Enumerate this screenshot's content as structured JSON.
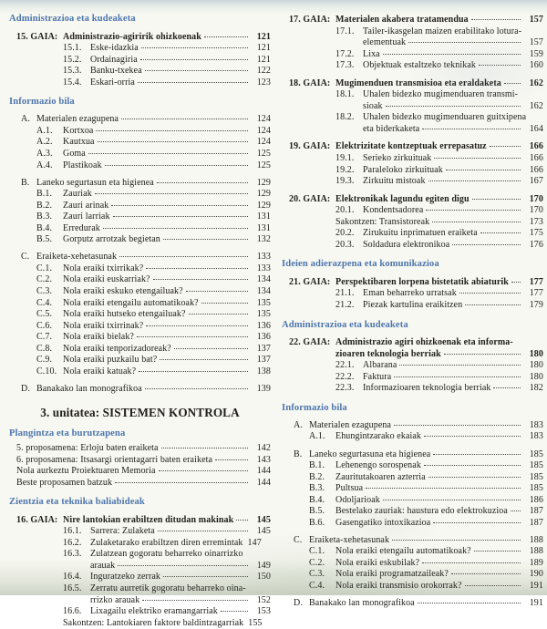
{
  "colors": {
    "heading_blue": "#4d76ad",
    "body_text": "#21201c",
    "paper": "#f8f8f2"
  },
  "columns": {
    "left": [
      {
        "type": "heading",
        "text": "Administrazioa eta kudeaketa"
      },
      {
        "type": "gaia",
        "pre": "15. GAIA:",
        "text": "Administrazio-agiririk ohizkoenak",
        "page": "121"
      },
      {
        "type": "gsub",
        "pre": "15.1.",
        "text": "Eske-idazkia",
        "page": "121"
      },
      {
        "type": "gsub",
        "pre": "15.2.",
        "text": "Ordainagiria",
        "page": "121"
      },
      {
        "type": "gsub",
        "pre": "15.3.",
        "text": "Banku-txekea",
        "page": "122"
      },
      {
        "type": "gsub",
        "pre": "15.4.",
        "text": "Eskari-orria",
        "page": "123"
      },
      {
        "type": "heading",
        "text": "Informazio bila"
      },
      {
        "type": "letter",
        "pre": "A.",
        "text": "Materialen ezagupena",
        "page": "124"
      },
      {
        "type": "lsub",
        "pre": "A.1.",
        "text": "Kortxoa",
        "page": "124"
      },
      {
        "type": "lsub",
        "pre": "A.2.",
        "text": "Kautxua",
        "page": "124"
      },
      {
        "type": "lsub",
        "pre": "A.3.",
        "text": "Goma",
        "page": "125"
      },
      {
        "type": "lsub",
        "pre": "A.4.",
        "text": "Plastikoak",
        "page": "125"
      },
      {
        "type": "letter",
        "pre": "B.",
        "text": "Laneko segurtasun eta higienea",
        "page": "129"
      },
      {
        "type": "lsub",
        "pre": "B.1.",
        "text": "Zauriak",
        "page": "129"
      },
      {
        "type": "lsub",
        "pre": "B.2.",
        "text": "Zauri arinak",
        "page": "129"
      },
      {
        "type": "lsub",
        "pre": "B.3.",
        "text": "Zauri larriak",
        "page": "131"
      },
      {
        "type": "lsub",
        "pre": "B.4.",
        "text": "Erredurak",
        "page": "131"
      },
      {
        "type": "lsub",
        "pre": "B.5.",
        "text": "Gorputz arrotzak begietan",
        "page": "132"
      },
      {
        "type": "letter",
        "pre": "C.",
        "text": "Eraiketa-xehetasunak",
        "page": "133"
      },
      {
        "type": "lsub",
        "pre": "C.1.",
        "text": "Nola eraiki txirrikak?",
        "page": "133"
      },
      {
        "type": "lsub",
        "pre": "C.2.",
        "text": "Nola eraiki euskarriak?",
        "page": "134"
      },
      {
        "type": "lsub",
        "pre": "C.3.",
        "text": "Nola eraiki eskuko etengailuak?",
        "page": "134"
      },
      {
        "type": "lsub",
        "pre": "C.4.",
        "text": "Nola eraiki etengailu automatikoak?",
        "page": "135"
      },
      {
        "type": "lsub",
        "pre": "C.5.",
        "text": "Nola eraiki hutseko etengailuak?",
        "page": "135"
      },
      {
        "type": "lsub",
        "pre": "C.6.",
        "text": "Nola eraiki txirrinak?",
        "page": "136"
      },
      {
        "type": "lsub",
        "pre": "C.7.",
        "text": "Nola eraiki bielak?",
        "page": "136"
      },
      {
        "type": "lsub",
        "pre": "C.8.",
        "text": "Nola eraiki tenporizadoreak?",
        "page": "137"
      },
      {
        "type": "lsub",
        "pre": "C.9.",
        "text": "Nola eraiki puzkailu bat?",
        "page": "137"
      },
      {
        "type": "lsub",
        "pre": "C.10.",
        "text": "Nola eraiki katuak?",
        "page": "138"
      },
      {
        "type": "letter",
        "pre": "D.",
        "text": "Banakako lan monografikoa",
        "page": "139"
      },
      {
        "type": "unit",
        "text": "3. unitatea: SISTEMEN KONTROLA"
      },
      {
        "type": "heading",
        "text": "Plangintza eta burutzapena"
      },
      {
        "type": "plain",
        "text": "5. proposamena: Erloju baten eraiketa",
        "page": "142"
      },
      {
        "type": "plain",
        "text": "6. proposamena: Itsasargi orientagarri baten eraiketa",
        "page": "143"
      },
      {
        "type": "plain",
        "text": "Nola aurkeztu Proiektuaren Memoria",
        "page": "144"
      },
      {
        "type": "plain",
        "text": "Beste proposamen batzuk",
        "page": "144"
      },
      {
        "type": "heading",
        "text": "Zientzia eta teknika baliabideak"
      },
      {
        "type": "gaia",
        "pre": "16. GAIA:",
        "text": "Nire lantokian erabiltzen ditudan makinak",
        "page": "145"
      },
      {
        "type": "gsub",
        "pre": "16.1.",
        "text": "Sarrera: Zulaketa",
        "page": "145"
      },
      {
        "type": "gsub",
        "pre": "16.2.",
        "text": "Zulaketarako erabiltzen diren erremintak",
        "page": "147",
        "nodots": true
      },
      {
        "type": "gsub",
        "pre": "16.3.",
        "text": "Zulatzean gogoratu beharreko oinarrizko"
      },
      {
        "type": "gsubcont",
        "text": "arauak",
        "page": "149"
      },
      {
        "type": "gsub",
        "pre": "16.4.",
        "text": "Inguratzeko zerrak",
        "page": "150"
      },
      {
        "type": "gsub",
        "pre": "16.5.",
        "text": "Zerratu aurretik gogoratu beharreko oina-"
      },
      {
        "type": "gsubcont",
        "text": "rrizko arauak",
        "page": "152"
      },
      {
        "type": "gsub",
        "pre": "16.6.",
        "text": "Lixagailu elektriko eramangarriak",
        "page": "153"
      },
      {
        "type": "sak",
        "text": "Sakontzen: Lantokiaren faktore baldintzagarriak",
        "page": "155",
        "nodots": true
      }
    ],
    "right": [
      {
        "type": "gaia",
        "pre": "17. GAIA:",
        "text": "Materialen akabera tratamendua",
        "page": "157"
      },
      {
        "type": "gsub",
        "pre": "17.1.",
        "text": "Tailer-ikasgelan maizen erabilitako lotura-"
      },
      {
        "type": "gsubcont",
        "text": "elementuak",
        "page": "157"
      },
      {
        "type": "gsub",
        "pre": "17.2.",
        "text": "Lixa",
        "page": "159"
      },
      {
        "type": "gsub",
        "pre": "17.3.",
        "text": "Objektuak estaltzeko teknikak",
        "page": "160"
      },
      {
        "type": "gaia",
        "pre": "18. GAIA:",
        "text": "Mugimenduen transmisioa eta eraldaketa",
        "page": "162"
      },
      {
        "type": "gsub",
        "pre": "18.1.",
        "text": "Uhalen bidezko mugimenduaren transmi-"
      },
      {
        "type": "gsubcont",
        "text": "sioak",
        "page": "162"
      },
      {
        "type": "gsub",
        "pre": "18.2.",
        "text": "Uhalen bidezko mugimenduaren guitxipena"
      },
      {
        "type": "gsubcont",
        "text": "eta biderkaketa",
        "page": "164"
      },
      {
        "type": "gaia",
        "pre": "19. GAIA:",
        "text": "Elektrizitate kontzeptuak errepasatuz",
        "page": "166"
      },
      {
        "type": "gsub",
        "pre": "19.1.",
        "text": "Serieko zirkuituak",
        "page": "166"
      },
      {
        "type": "gsub",
        "pre": "19.2.",
        "text": "Paraleloko zirkuituak",
        "page": "166"
      },
      {
        "type": "gsub",
        "pre": "19.3.",
        "text": "Zirkuitu mistoak",
        "page": "167"
      },
      {
        "type": "gaia",
        "pre": "20. GAIA:",
        "text": "Elektronikak lagundu egiten digu",
        "page": "170"
      },
      {
        "type": "gsub",
        "pre": "20.1.",
        "text": "Kondentsadorea",
        "page": "170"
      },
      {
        "type": "sak",
        "text": "Sakontzen: Transistoreak",
        "page": "173"
      },
      {
        "type": "gsub",
        "pre": "20.2.",
        "text": "Zirukuitu inprimatuen eraiketa",
        "page": "175"
      },
      {
        "type": "gsub",
        "pre": "20.3.",
        "text": "Soldadura elektronikoa",
        "page": "176"
      },
      {
        "type": "heading",
        "text": "Ideien adierazpena eta komunikazioa"
      },
      {
        "type": "gaia",
        "pre": "21. GAIA:",
        "text": "Perspektibaren lorpena bistetatik abiaturik",
        "page": "177"
      },
      {
        "type": "gsub",
        "pre": "21.1.",
        "text": "Eman beharreko urratsak",
        "page": "177"
      },
      {
        "type": "gsub",
        "pre": "21.2.",
        "text": "Piezak kartulina eraikitzen",
        "page": "179"
      },
      {
        "type": "heading",
        "text": "Administrazioa eta kudeaketa"
      },
      {
        "type": "gaia",
        "pre": "22. GAIA:",
        "text": "Administrazio agiri ohizkoenak eta informa-"
      },
      {
        "type": "gaiacont",
        "text": "zioaren teknologia berriak",
        "page": "180"
      },
      {
        "type": "gsub",
        "pre": "22.1.",
        "text": "Albarana",
        "page": "180"
      },
      {
        "type": "gsub",
        "pre": "22.2.",
        "text": "Faktura",
        "page": "180"
      },
      {
        "type": "gsub",
        "pre": "22.3.",
        "text": "Informazioaren teknologia berriak",
        "page": "182"
      },
      {
        "type": "heading",
        "text": "Informazio bila"
      },
      {
        "type": "letter",
        "pre": "A.",
        "text": "Materialen ezagupena",
        "page": "183"
      },
      {
        "type": "lsub",
        "pre": "A.1.",
        "text": "Ehungintzarako ekaiak",
        "page": "183"
      },
      {
        "type": "letter",
        "pre": "B.",
        "text": "Laneko segurtasuna eta higienea",
        "page": "185"
      },
      {
        "type": "lsub",
        "pre": "B.1.",
        "text": "Lehenengo sorospenak",
        "page": "185"
      },
      {
        "type": "lsub",
        "pre": "B.2.",
        "text": "Zauritutakoaren azterria",
        "page": "185"
      },
      {
        "type": "lsub",
        "pre": "B.3.",
        "text": "Pultsua",
        "page": "185"
      },
      {
        "type": "lsub",
        "pre": "B.4.",
        "text": "Odoljarioak",
        "page": "186"
      },
      {
        "type": "lsub",
        "pre": "B.5.",
        "text": "Bestelako zauriak: haustura edo elektrokuzioa",
        "page": "187"
      },
      {
        "type": "lsub",
        "pre": "B.6.",
        "text": "Gasengatiko intoxikazioa",
        "page": "187"
      },
      {
        "type": "letter",
        "pre": "C.",
        "text": "Eraiketa-xehetasunak",
        "page": "188"
      },
      {
        "type": "lsub",
        "pre": "C.1.",
        "text": "Nola eraiki etengailu automatikoak?",
        "page": "188"
      },
      {
        "type": "lsub",
        "pre": "C.2.",
        "text": "Nola eraiki eskubilak?",
        "page": "189"
      },
      {
        "type": "lsub",
        "pre": "C.3.",
        "text": "Nola eraiki programatzaileak?",
        "page": "190"
      },
      {
        "type": "lsub",
        "pre": "C.4.",
        "text": "Nola eraiki transmisio orokorrak?",
        "page": "191"
      },
      {
        "type": "letter",
        "pre": "D.",
        "text": "Banakako lan monografikoa",
        "page": "191"
      }
    ]
  }
}
